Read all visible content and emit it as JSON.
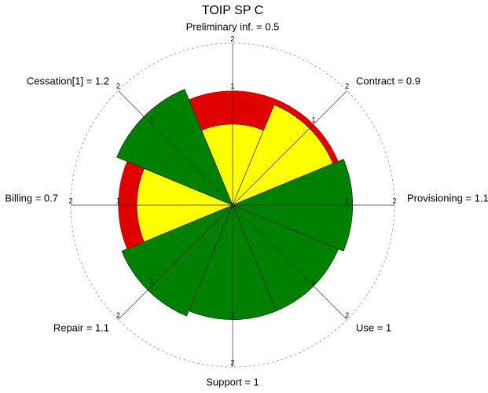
{
  "chart_data": {
    "type": "polar_bar",
    "title": "TOIP SP C",
    "categories": [
      "Preliminary inf. = 0.5",
      "Contract = 0.9",
      "Provisioning = 1.1",
      "Use = 1",
      "Support = 1",
      "Repair = 1.1",
      "Billing = 0.7",
      "Cessation[1] = 1.2"
    ],
    "values": [
      0.5,
      0.9,
      1.1,
      1,
      1,
      1.1,
      0.7,
      1.2
    ],
    "colors": [
      "#ffff00",
      "#ffff00",
      "#008000",
      "#008000",
      "#008000",
      "#008000",
      "#ffff00",
      "#008000"
    ],
    "threshold": 1,
    "threshold_color": "#e00000",
    "rlim": [
      0,
      2
    ],
    "rticks": [
      1,
      2
    ],
    "rscale": "sqrt"
  }
}
